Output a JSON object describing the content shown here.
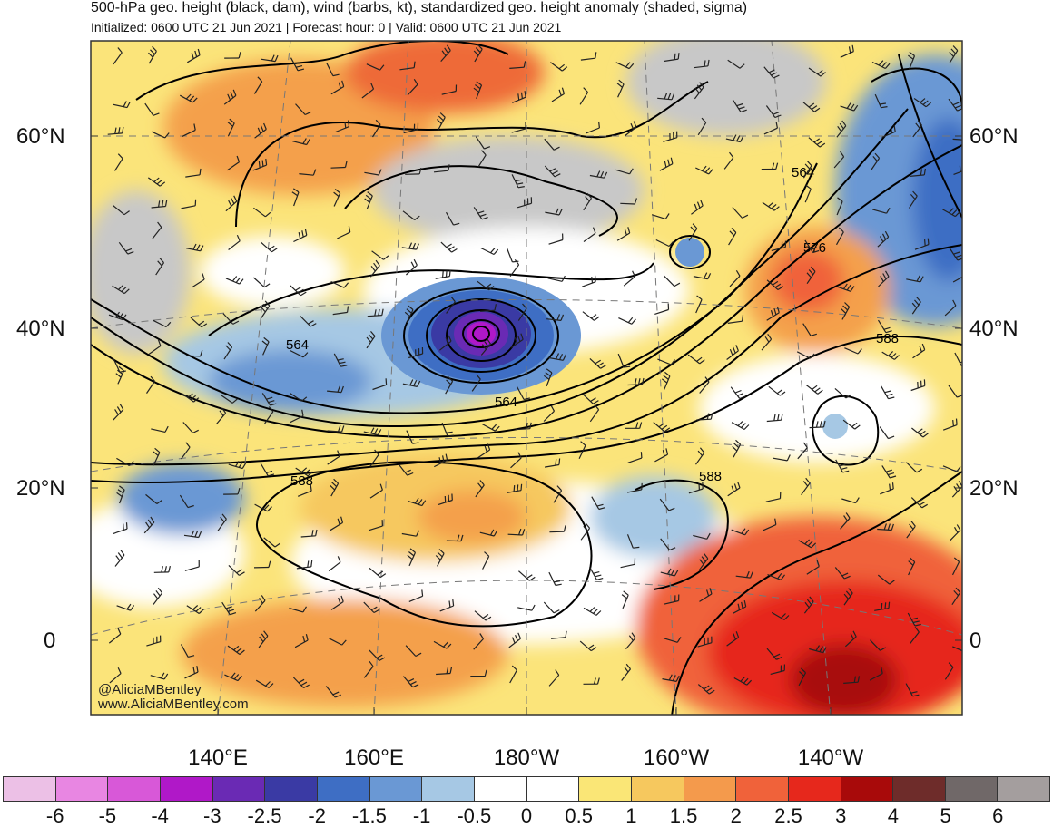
{
  "title": "500-hPa geo. height (black, dam), wind (barbs, kt), standardized geo. height anomaly (shaded, sigma)",
  "subtitle": "Initialized: 0600 UTC 21 Jun 2021 | Forecast hour: 0 | Valid: 0600 UTC 21 Jun 2021",
  "lat_labels": [
    "60°N",
    "40°N",
    "20°N",
    "0"
  ],
  "lon_labels": [
    "140°E",
    "160°E",
    "180°W",
    "160°W",
    "140°W"
  ],
  "contour_labels": [
    "564",
    "576",
    "588",
    "564",
    "564",
    "588",
    "588"
  ],
  "credit": [
    "@AliciaMBentley",
    "www.AliciaMBentley.com"
  ],
  "colorbar": {
    "labels": [
      "-6",
      "-5",
      "-4",
      "-3",
      "-2.5",
      "-2",
      "-1.5",
      "-1",
      "-0.5",
      "0",
      "0.5",
      "1",
      "1.5",
      "2",
      "2.5",
      "3",
      "4",
      "5",
      "6"
    ],
    "colors": [
      "#ecc0e6",
      "#e886e2",
      "#d858d8",
      "#b018c8",
      "#6a2ab4",
      "#3a3aa4",
      "#3e6ec4",
      "#6a98d4",
      "#a6c8e4",
      "#ffffff",
      "#ffffff",
      "#fae676",
      "#f6c85e",
      "#f49a4c",
      "#f0623a",
      "#e6281c",
      "#a80a0a",
      "#6e2c2a",
      "#706868",
      "#a49e9e"
    ]
  },
  "colors": {
    "land": "#c8c8c8",
    "background": "#ffffff"
  }
}
